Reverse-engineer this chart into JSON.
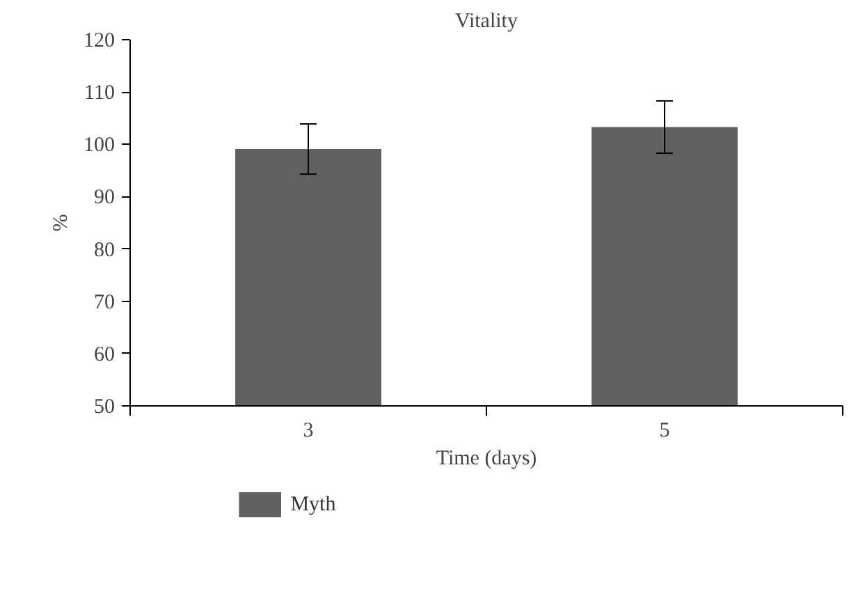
{
  "chart_data": {
    "type": "bar",
    "title": "Vitality",
    "xlabel": "Time (days)",
    "ylabel": "%",
    "categories": [
      "3",
      "5"
    ],
    "series": [
      {
        "name": "Myth",
        "color": "#5f605f",
        "values": [
          99.1,
          103.3
        ],
        "errors": [
          4.8,
          5.0
        ]
      }
    ],
    "ylim": [
      50,
      120
    ],
    "yticks": [
      50,
      60,
      70,
      80,
      90,
      100,
      110,
      120
    ],
    "grid": false,
    "legend": "bottom left"
  }
}
